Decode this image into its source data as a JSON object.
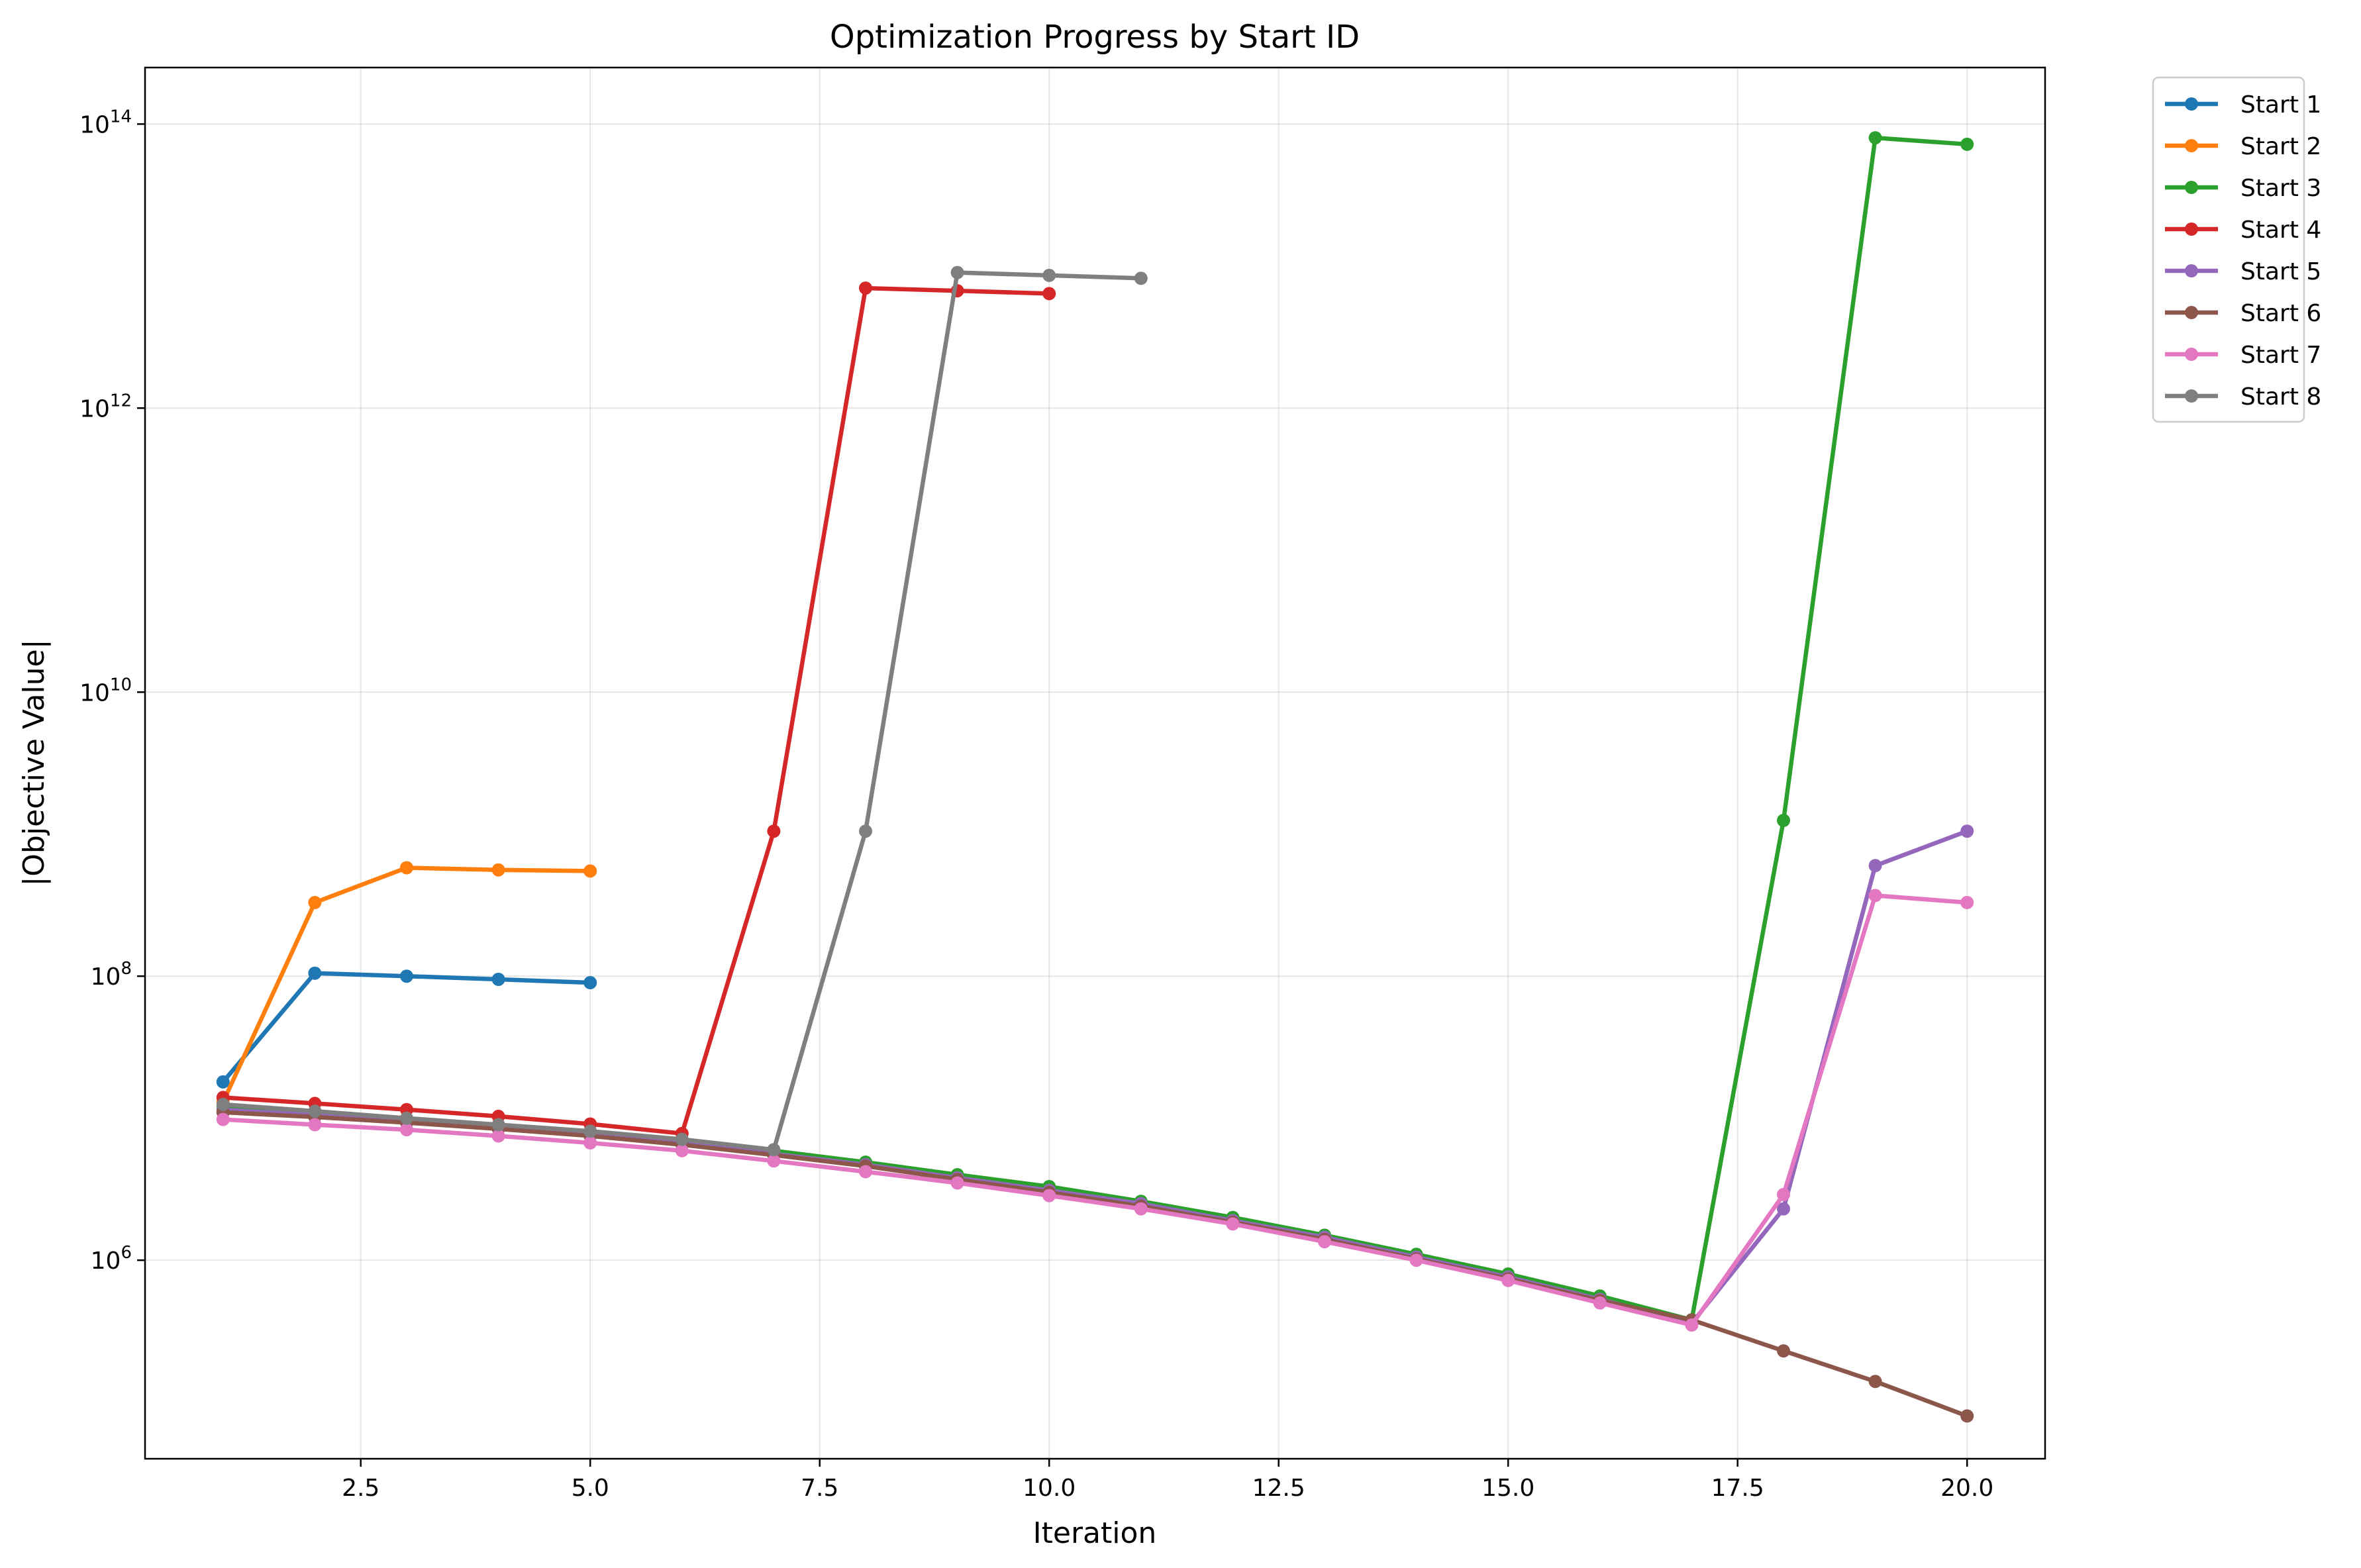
{
  "chart_data": {
    "type": "line",
    "title": "Optimization Progress by Start ID",
    "xlabel": "Iteration",
    "ylabel": "|Objective Value|",
    "yscale": "log",
    "xlim": [
      0.15,
      20.85
    ],
    "ylim": [
      40000.0,
      250000000000000.0
    ],
    "xticks": [
      2.5,
      5.0,
      7.5,
      10.0,
      12.5,
      15.0,
      17.5,
      20.0
    ],
    "xtick_labels": [
      "2.5",
      "5.0",
      "7.5",
      "10.0",
      "12.5",
      "15.0",
      "17.5",
      "20.0"
    ],
    "yticks": [
      {
        "value": 1000000,
        "base": "10",
        "exp": "6"
      },
      {
        "value": 100000000,
        "base": "10",
        "exp": "8"
      },
      {
        "value": 10000000000,
        "base": "10",
        "exp": "10"
      },
      {
        "value": 1000000000000,
        "base": "10",
        "exp": "12"
      },
      {
        "value": 100000000000000,
        "base": "10",
        "exp": "14"
      }
    ],
    "grid": true,
    "legend_position": "outside-top-right",
    "series": [
      {
        "name": "Start 1",
        "color": "#1f77b4",
        "x": [
          1,
          2,
          3,
          4,
          5
        ],
        "y": [
          18000000,
          105000000,
          100000000,
          95000000,
          90000000
        ]
      },
      {
        "name": "Start 2",
        "color": "#ff7f0e",
        "x": [
          1,
          2,
          3,
          4,
          5
        ],
        "y": [
          13000000,
          330000000,
          580000000,
          560000000,
          550000000
        ]
      },
      {
        "name": "Start 3",
        "color": "#2ca02c",
        "x": [
          1,
          2,
          3,
          4,
          5,
          6,
          7,
          8,
          9,
          10,
          11,
          12,
          13,
          14,
          15,
          16,
          17,
          18,
          19,
          20
        ],
        "y": [
          12000000,
          10800000,
          9800000,
          8900000,
          8000000,
          7000000,
          5900000,
          4900000,
          4000000,
          3300000,
          2600000,
          2000000,
          1500000,
          1100000,
          800000,
          560000,
          380000,
          1250000000,
          80000000000000,
          72000000000000
        ]
      },
      {
        "name": "Start 4",
        "color": "#d62728",
        "x": [
          1,
          2,
          3,
          4,
          5,
          6,
          7,
          8,
          9,
          10
        ],
        "y": [
          14000000,
          12700000,
          11500000,
          10300000,
          9100000,
          7800000,
          1050000000,
          7000000000000,
          6700000000000,
          6400000000000
        ]
      },
      {
        "name": "Start 5",
        "color": "#9467bd",
        "x": [
          1,
          2,
          3,
          4,
          5,
          6,
          7,
          8,
          9,
          10,
          11,
          12,
          13,
          14,
          15,
          16,
          17,
          18,
          19,
          20
        ],
        "y": [
          11500000,
          10500000,
          9500000,
          8500000,
          7600000,
          6700000,
          5600000,
          4700000,
          3800000,
          3100000,
          2500000,
          1900000,
          1450000,
          1050000,
          760000,
          530000,
          360000,
          2300000,
          600000000,
          1050000000
        ]
      },
      {
        "name": "Start 6",
        "color": "#8c564b",
        "x": [
          1,
          2,
          3,
          4,
          5,
          6,
          7,
          8,
          9,
          10,
          11,
          12,
          13,
          14,
          15,
          16,
          17,
          18,
          19,
          20
        ],
        "y": [
          11000000,
          10200000,
          9300000,
          8400000,
          7500000,
          6500000,
          5500000,
          4600000,
          3700000,
          3000000,
          2400000,
          1850000,
          1400000,
          1020000,
          740000,
          520000,
          380000,
          230000,
          140000,
          80000
        ]
      },
      {
        "name": "Start 7",
        "color": "#e377c2",
        "x": [
          1,
          2,
          3,
          4,
          5,
          6,
          7,
          8,
          9,
          10,
          11,
          12,
          13,
          14,
          15,
          16,
          17,
          18,
          19,
          20
        ],
        "y": [
          9800000,
          9000000,
          8300000,
          7500000,
          6700000,
          5900000,
          5000000,
          4200000,
          3500000,
          2850000,
          2300000,
          1800000,
          1350000,
          1000000,
          720000,
          500000,
          350000,
          2900000,
          370000000,
          330000000
        ]
      },
      {
        "name": "Start 8",
        "color": "#7f7f7f",
        "x": [
          1,
          2,
          3,
          4,
          5,
          6,
          7,
          8,
          9,
          10,
          11
        ],
        "y": [
          12500000,
          11200000,
          10000000,
          9000000,
          8100000,
          7100000,
          6000000,
          1050000000,
          9000000000000,
          8600000000000,
          8200000000000
        ]
      }
    ]
  }
}
